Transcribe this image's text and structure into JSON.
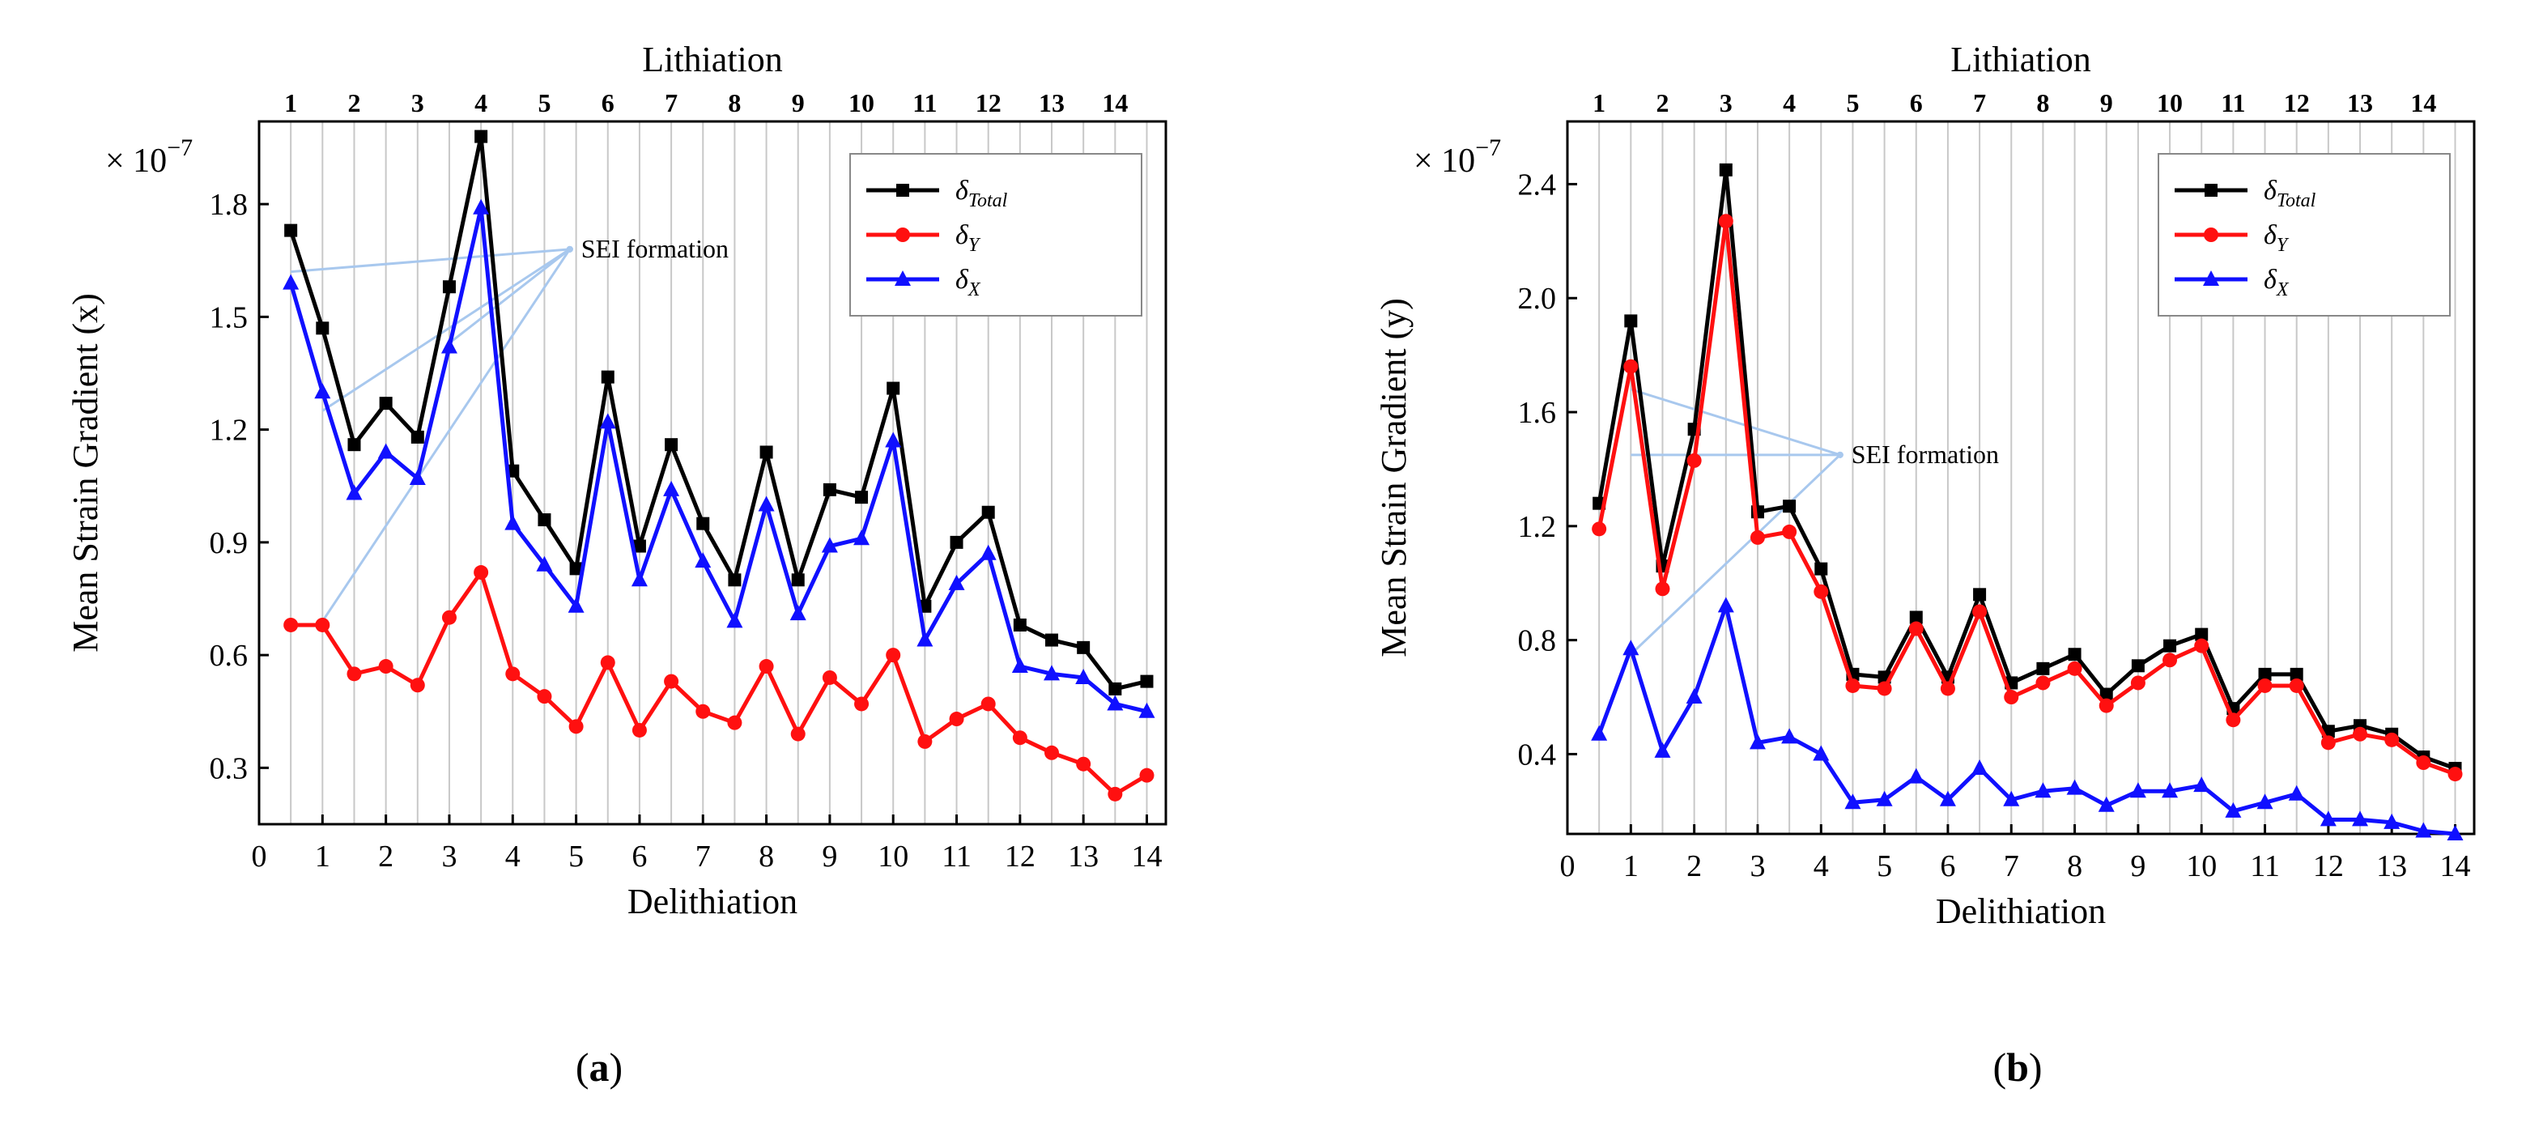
{
  "figure": {
    "panel_labels": [
      "(a)",
      "(b)"
    ]
  },
  "colors": {
    "total": "#000000",
    "y": "#ff1010",
    "x": "#1010ff",
    "grid": "#c8c8c8",
    "annotation": "#a8c8ee"
  },
  "chart_data": [
    {
      "type": "line",
      "panel": "(a)",
      "top_axis_label": "Lithiation",
      "top_ticks": [
        "1",
        "2",
        "3",
        "4",
        "5",
        "6",
        "7",
        "8",
        "9",
        "10",
        "11",
        "12",
        "13",
        "14"
      ],
      "xlabel": "Delithiation",
      "ylabel": "Mean Strain Gradient (x)",
      "multiplier": "× 10",
      "multiplier_exp": "−7",
      "xlim": [
        0,
        14.3
      ],
      "ylim": [
        0.15,
        2.02
      ],
      "xticks": [
        0,
        1,
        2,
        3,
        4,
        5,
        6,
        7,
        8,
        9,
        10,
        11,
        12,
        13,
        14
      ],
      "xtick_labels": [
        "0",
        "1",
        "2",
        "3",
        "4",
        "5",
        "6",
        "7",
        "8",
        "9",
        "10",
        "11",
        "12",
        "13",
        "14"
      ],
      "yticks": [
        0.3,
        0.6,
        0.9,
        1.2,
        1.5,
        1.8
      ],
      "ytick_labels": [
        "0.3",
        "0.6",
        "0.9",
        "1.2",
        "1.5",
        "1.8"
      ],
      "legend_position": "top-right",
      "annotation": {
        "text": "SEI formation",
        "anchor": [
          4.9,
          1.68
        ],
        "sources": [
          [
            0.5,
            1.62
          ],
          [
            1.0,
            1.25
          ],
          [
            3.0,
            1.43
          ],
          [
            1.0,
            0.69
          ]
        ]
      },
      "x": [
        0.5,
        1,
        1.5,
        2,
        2.5,
        3,
        3.5,
        4,
        4.5,
        5,
        5.5,
        6,
        6.5,
        7,
        7.5,
        8,
        8.5,
        9,
        9.5,
        10,
        10.5,
        11,
        11.5,
        12,
        12.5,
        13,
        13.5,
        14
      ],
      "series": [
        {
          "name": "δ_Total",
          "label_main": "δ",
          "label_sub": "Total",
          "color": "#000000",
          "marker": "square",
          "values": [
            1.73,
            1.47,
            1.16,
            1.27,
            1.18,
            1.58,
            1.98,
            1.09,
            0.96,
            0.83,
            1.34,
            0.89,
            1.16,
            0.95,
            0.8,
            1.14,
            0.8,
            1.04,
            1.02,
            1.31,
            0.73,
            0.9,
            0.98,
            0.68,
            0.64,
            0.62,
            0.51,
            0.53
          ]
        },
        {
          "name": "δ_Y",
          "label_main": "δ",
          "label_sub": "Y",
          "color": "#ff1010",
          "marker": "circle",
          "values": [
            0.68,
            0.68,
            0.55,
            0.57,
            0.52,
            0.7,
            0.82,
            0.55,
            0.49,
            0.41,
            0.58,
            0.4,
            0.53,
            0.45,
            0.42,
            0.57,
            0.39,
            0.54,
            0.47,
            0.6,
            0.37,
            0.43,
            0.47,
            0.38,
            0.34,
            0.31,
            0.23,
            0.28
          ]
        },
        {
          "name": "δ_X",
          "label_main": "δ",
          "label_sub": "X",
          "color": "#1010ff",
          "marker": "triangle",
          "values": [
            1.59,
            1.3,
            1.03,
            1.14,
            1.07,
            1.42,
            1.79,
            0.95,
            0.84,
            0.73,
            1.22,
            0.8,
            1.04,
            0.85,
            0.69,
            1.0,
            0.71,
            0.89,
            0.91,
            1.17,
            0.64,
            0.79,
            0.87,
            0.57,
            0.55,
            0.54,
            0.47,
            0.45
          ]
        }
      ]
    },
    {
      "type": "line",
      "panel": "(b)",
      "top_axis_label": "Lithiation",
      "top_ticks": [
        "1",
        "2",
        "3",
        "4",
        "5",
        "6",
        "7",
        "8",
        "9",
        "10",
        "11",
        "12",
        "13",
        "14"
      ],
      "xlabel": "Delithiation",
      "ylabel": "Mean Strain Gradient (y)",
      "multiplier": "× 10",
      "multiplier_exp": "−7",
      "xlim": [
        0,
        14.3
      ],
      "ylim": [
        0.12,
        2.62
      ],
      "xticks": [
        0,
        1,
        2,
        3,
        4,
        5,
        6,
        7,
        8,
        9,
        10,
        11,
        12,
        13,
        14
      ],
      "xtick_labels": [
        "0",
        "1",
        "2",
        "3",
        "4",
        "5",
        "6",
        "7",
        "8",
        "9",
        "10",
        "11",
        "12",
        "13",
        "14"
      ],
      "yticks": [
        0.4,
        0.8,
        1.2,
        1.6,
        2.0,
        2.4
      ],
      "ytick_labels": [
        "0.4",
        "0.8",
        "1.2",
        "1.6",
        "2.0",
        "2.4"
      ],
      "legend_position": "top-right",
      "annotation": {
        "text": "SEI formation",
        "anchor": [
          4.3,
          1.45
        ],
        "sources": [
          [
            1.0,
            1.68
          ],
          [
            1.0,
            1.45
          ],
          [
            1.0,
            0.75
          ]
        ]
      },
      "x": [
        0.5,
        1,
        1.5,
        2,
        2.5,
        3,
        3.5,
        4,
        4.5,
        5,
        5.5,
        6,
        6.5,
        7,
        7.5,
        8,
        8.5,
        9,
        9.5,
        10,
        10.5,
        11,
        11.5,
        12,
        12.5,
        13,
        13.5,
        14
      ],
      "series": [
        {
          "name": "δ_Total",
          "label_main": "δ",
          "label_sub": "Total",
          "color": "#000000",
          "marker": "square",
          "values": [
            1.28,
            1.92,
            1.06,
            1.54,
            2.45,
            1.25,
            1.27,
            1.05,
            0.68,
            0.67,
            0.88,
            0.67,
            0.96,
            0.65,
            0.7,
            0.75,
            0.61,
            0.71,
            0.78,
            0.82,
            0.56,
            0.68,
            0.68,
            0.48,
            0.5,
            0.47,
            0.39,
            0.35
          ]
        },
        {
          "name": "δ_Y",
          "label_main": "δ",
          "label_sub": "Y",
          "color": "#ff1010",
          "marker": "circle",
          "values": [
            1.19,
            1.76,
            0.98,
            1.43,
            2.27,
            1.16,
            1.18,
            0.97,
            0.64,
            0.63,
            0.84,
            0.63,
            0.9,
            0.6,
            0.65,
            0.7,
            0.57,
            0.65,
            0.73,
            0.78,
            0.52,
            0.64,
            0.64,
            0.44,
            0.47,
            0.45,
            0.37,
            0.33
          ]
        },
        {
          "name": "δ_X",
          "label_main": "δ",
          "label_sub": "X",
          "color": "#1010ff",
          "marker": "triangle",
          "values": [
            0.47,
            0.77,
            0.41,
            0.6,
            0.92,
            0.44,
            0.46,
            0.4,
            0.23,
            0.24,
            0.32,
            0.24,
            0.35,
            0.24,
            0.27,
            0.28,
            0.22,
            0.27,
            0.27,
            0.29,
            0.2,
            0.23,
            0.26,
            0.17,
            0.17,
            0.16,
            0.13,
            0.12
          ]
        }
      ]
    }
  ]
}
